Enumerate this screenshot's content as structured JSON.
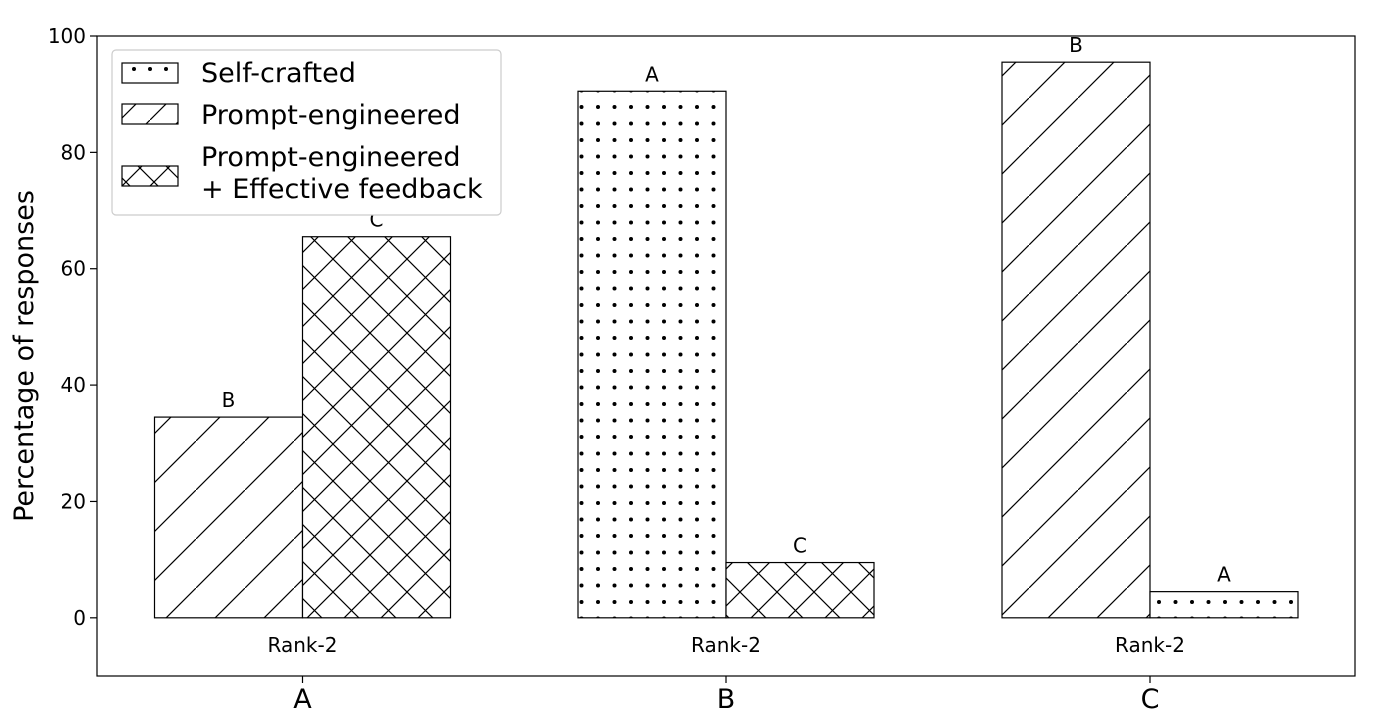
{
  "chart_data": {
    "type": "bar",
    "categories": [
      "A",
      "B",
      "C"
    ],
    "ylabel": "Percentage of responses",
    "xlabel": "",
    "ylim": [
      -10,
      100
    ],
    "yticks": [
      0,
      20,
      40,
      60,
      80,
      100
    ],
    "grid": false,
    "legend_position": "top-left",
    "legend": [
      {
        "name": "Self-crafted",
        "pattern": "dots"
      },
      {
        "name": "Prompt-engineered",
        "pattern": "diagonal"
      },
      {
        "name": "Prompt-engineered\n+ Effective feedback",
        "pattern": "crosshatch"
      }
    ],
    "groups": [
      {
        "category": "A",
        "sublabel": "Rank-2",
        "bars": [
          {
            "label": "B",
            "value": 34.5,
            "pattern": "diagonal"
          },
          {
            "label": "C",
            "value": 65.5,
            "pattern": "crosshatch"
          }
        ]
      },
      {
        "category": "B",
        "sublabel": "Rank-2",
        "bars": [
          {
            "label": "A",
            "value": 90.5,
            "pattern": "dots"
          },
          {
            "label": "C",
            "value": 9.5,
            "pattern": "crosshatch"
          }
        ]
      },
      {
        "category": "C",
        "sublabel": "Rank-2",
        "bars": [
          {
            "label": "B",
            "value": 95.5,
            "pattern": "diagonal"
          },
          {
            "label": "A",
            "value": 4.5,
            "pattern": "dots"
          }
        ]
      }
    ]
  }
}
